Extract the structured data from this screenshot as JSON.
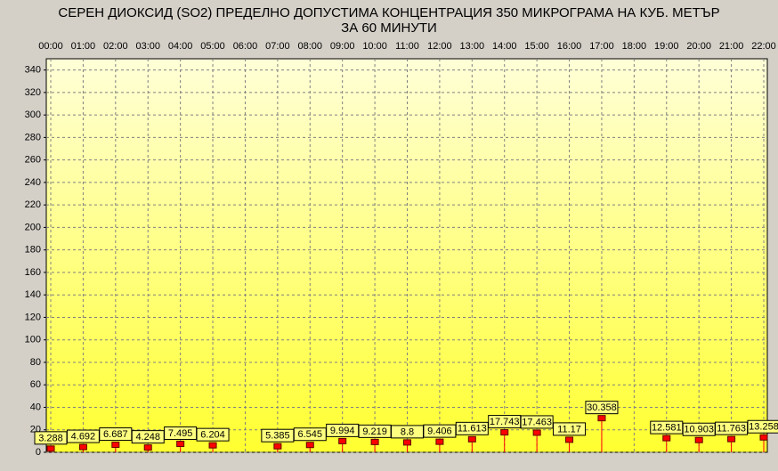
{
  "chart_data": {
    "type": "stem",
    "title": [
      "СЕРЕН ДИОКСИД  (SO2)  ПРЕДЕЛНО ДОПУСТИМА КОНЦЕНТРАЦИЯ 350 МИКРОГРАМА  НА КУБ. МЕТЪР",
      "ЗА 60 МИНУТИ"
    ],
    "categories": [
      "00:00",
      "01:00",
      "02:00",
      "03:00",
      "04:00",
      "05:00",
      "06:00",
      "07:00",
      "08:00",
      "09:00",
      "10:00",
      "11:00",
      "12:00",
      "13:00",
      "14:00",
      "15:00",
      "16:00",
      "17:00",
      "18:00",
      "19:00",
      "20:00",
      "21:00",
      "22:00"
    ],
    "values": [
      3.288,
      4.692,
      6.687,
      4.248,
      7.495,
      6.204,
      null,
      5.385,
      6.545,
      9.994,
      9.219,
      8.8,
      9.406,
      11.613,
      17.743,
      17.463,
      11.17,
      30.358,
      null,
      12.581,
      10.903,
      11.763,
      13.258
    ],
    "color": "#ff0000",
    "ylim": [
      0,
      350
    ],
    "yticks": [
      0,
      20,
      40,
      60,
      80,
      100,
      120,
      140,
      160,
      180,
      200,
      220,
      240,
      260,
      280,
      300,
      320,
      340
    ],
    "grid": true
  }
}
